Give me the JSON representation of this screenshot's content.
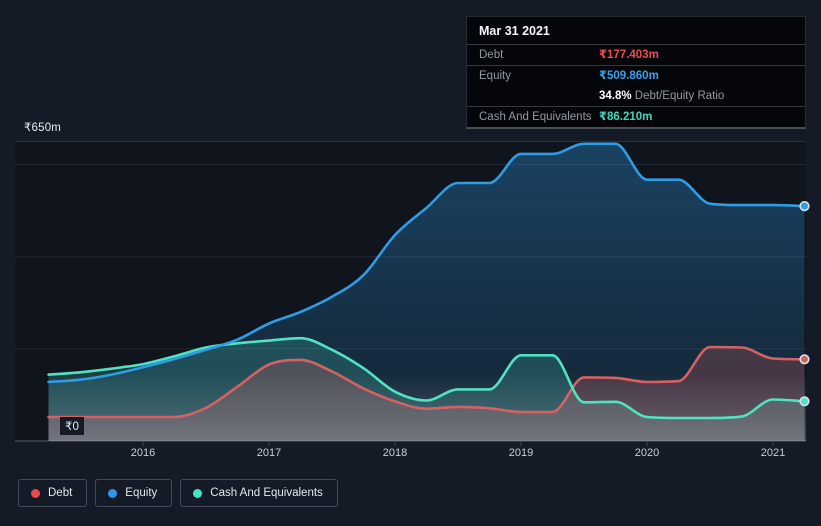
{
  "page": {
    "background": "#151b26"
  },
  "tooltip": {
    "date": "Mar 31 2021",
    "rows": [
      {
        "label": "Debt",
        "value": "₹177.403m",
        "color": "#ef4d52"
      },
      {
        "label": "Equity",
        "value": "₹509.860m",
        "color": "#36a2ee"
      },
      {
        "label": "Cash And Equivalents",
        "value": "₹86.210m",
        "color": "#3fd6c0"
      }
    ],
    "ratio_bold": "34.8%",
    "ratio_rest": " Debt/Equity Ratio"
  },
  "legend": [
    {
      "label": "Debt",
      "color": "#e8494f"
    },
    {
      "label": "Equity",
      "color": "#2c97e8"
    },
    {
      "label": "Cash And Equivalents",
      "color": "#43e5c4"
    }
  ],
  "chart_data": {
    "type": "area",
    "title": "Debt to Equity history",
    "unit": "₹m",
    "x": [
      2015.25,
      2015.5,
      2015.75,
      2016,
      2016.25,
      2016.5,
      2016.75,
      2017,
      2017.25,
      2017.5,
      2017.75,
      2018,
      2018.25,
      2018.5,
      2018.75,
      2019,
      2019.25,
      2019.5,
      2019.75,
      2020,
      2020.25,
      2020.5,
      2020.75,
      2021,
      2021.25
    ],
    "series": [
      {
        "name": "Debt",
        "color": "#d66161",
        "fill": "rgba(214,97,97,0.25)",
        "values": [
          52,
          52,
          52,
          52,
          52,
          72,
          118,
          166,
          176,
          151,
          114,
          86,
          70,
          74,
          71,
          63,
          63,
          138,
          137,
          128,
          130,
          204,
          203,
          179,
          177.4
        ]
      },
      {
        "name": "Equity",
        "color": "#2f9ce6",
        "fill": "rgba(47,156,230,0.34)",
        "values": [
          128,
          133,
          144,
          160,
          178,
          198,
          220,
          255,
          280,
          313,
          360,
          447,
          506,
          560,
          560,
          623,
          623,
          645,
          645,
          567,
          567,
          515,
          512,
          512,
          509.86
        ]
      },
      {
        "name": "Cash And Equivalents",
        "color": "#4fe3c1",
        "fill": "rgba(79,227,193,0.20)",
        "values": [
          144,
          149,
          157,
          167,
          184,
          203,
          212,
          218,
          223,
          198,
          158,
          107,
          88,
          112,
          112,
          186,
          186,
          84,
          85,
          52,
          50,
          50,
          53,
          90,
          86.21
        ]
      }
    ],
    "ylabel_top": "₹650m",
    "ylabel_bottom": "₹0",
    "ylim": [
      0,
      650
    ],
    "gridline_values": [
      650,
      600,
      400,
      200,
      0
    ],
    "x_ticks": [
      2016,
      2017,
      2018,
      2019,
      2020,
      2021
    ],
    "grid": true,
    "legend_position": "bottom"
  }
}
